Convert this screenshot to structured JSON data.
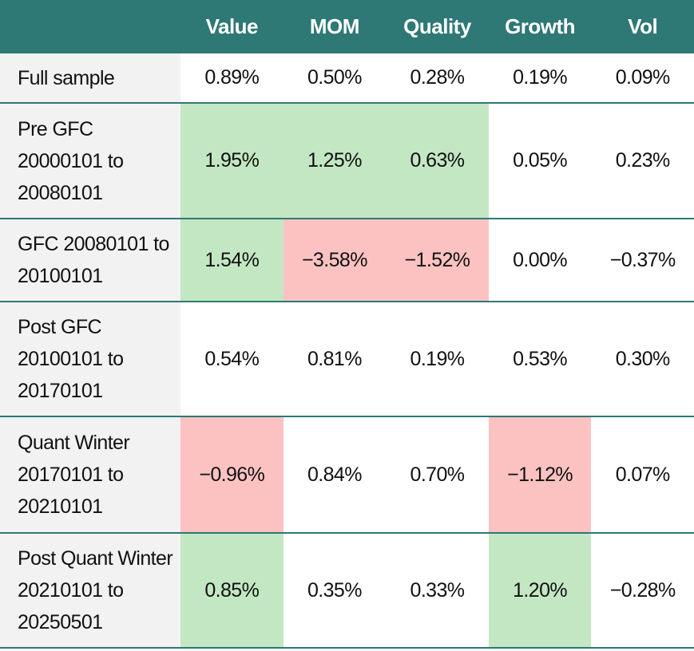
{
  "table": {
    "columns": [
      "Value",
      "MOM",
      "Quality",
      "Growth",
      "Vol"
    ],
    "colors": {
      "header": "#2e7876",
      "label": "#f2f2f2",
      "green": "#c3e7c3",
      "red": "#fcc2c2",
      "rule": "#2e7876"
    },
    "rows": [
      {
        "label": "Full sample",
        "values": [
          "0.89%",
          "0.50%",
          "0.28%",
          "0.19%",
          "0.09%"
        ]
      },
      {
        "label": "Pre GFC 20000101 to 20080101",
        "values": [
          "1.95%",
          "1.25%",
          "0.63%",
          "0.05%",
          "0.23%"
        ],
        "highlight": [
          "green",
          "green",
          "green",
          null,
          null
        ]
      },
      {
        "label": "GFC 20080101 to 20100101",
        "values": [
          "1.54%",
          "−3.58%",
          "−1.52%",
          "0.00%",
          "−0.37%"
        ],
        "highlight": [
          "green",
          "red",
          "red",
          null,
          null
        ]
      },
      {
        "label": "Post GFC 20100101 to 20170101",
        "values": [
          "0.54%",
          "0.81%",
          "0.19%",
          "0.53%",
          "0.30%"
        ]
      },
      {
        "label": "Quant Winter 20170101 to 20210101",
        "values": [
          "−0.96%",
          "0.84%",
          "0.70%",
          "−1.12%",
          "0.07%"
        ],
        "highlight": [
          "red",
          null,
          null,
          "red",
          null
        ]
      },
      {
        "label": "Post Quant Winter 20210101 to 20250501",
        "values": [
          "0.85%",
          "0.35%",
          "0.33%",
          "1.20%",
          "−0.28%"
        ],
        "highlight": [
          "green",
          null,
          null,
          "green",
          null
        ]
      }
    ]
  }
}
